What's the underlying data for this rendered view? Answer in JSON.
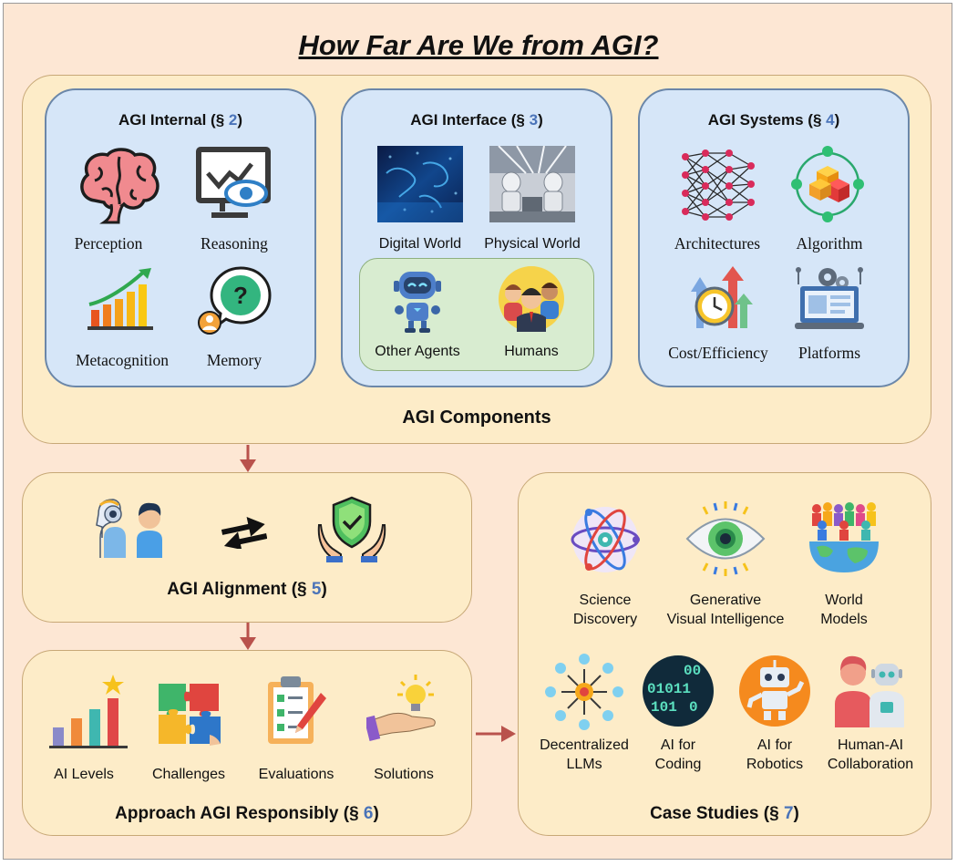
{
  "title": "How Far Are We from AGI?",
  "components": {
    "caption": "AGI Components",
    "internal": {
      "title": "AGI Internal (",
      "section_sym": "§",
      "section_num": "2",
      "close": ")",
      "items": [
        "Perception",
        "Reasoning",
        "Metacognition",
        "Memory"
      ]
    },
    "interface": {
      "title": "AGI Interface (",
      "section_sym": "§",
      "section_num": "3",
      "close": ")",
      "items": [
        "Digital World",
        "Physical World",
        "Other Agents",
        "Humans"
      ]
    },
    "systems": {
      "title": "AGI Systems (",
      "section_sym": "§",
      "section_num": "4",
      "close": ")",
      "items": [
        "Architectures",
        "Algorithm",
        "Cost/Efficiency",
        "Platforms"
      ]
    }
  },
  "alignment": {
    "title": "AGI Alignment (",
    "section_sym": "§",
    "section_num": "5",
    "close": ")"
  },
  "approach": {
    "title": "Approach AGI Responsibly (",
    "section_sym": "§",
    "section_num": "6",
    "close": ")",
    "items": [
      "AI Levels",
      "Challenges",
      "Evaluations",
      "Solutions"
    ]
  },
  "case_studies": {
    "title": "Case Studies (",
    "section_sym": "§",
    "section_num": "7",
    "close": ")",
    "row1": [
      {
        "line1": "Science",
        "line2": "Discovery"
      },
      {
        "line1": "Generative",
        "line2": "Visual Intelligence"
      },
      {
        "line1": "World",
        "line2": "Models"
      }
    ],
    "row2": [
      {
        "line1": "Decentralized",
        "line2": "LLMs"
      },
      {
        "line1": "AI for",
        "line2": "Coding"
      },
      {
        "line1": "AI for",
        "line2": "Robotics"
      },
      {
        "line1": "Human-AI",
        "line2": "Collaboration"
      }
    ]
  },
  "coding_icon_text": [
    "00",
    "01011",
    "101",
    "0"
  ],
  "colors": {
    "background": "#fde7d4",
    "panel": "#fdecc8",
    "blue_panel": "#d6e6f8",
    "green_panel": "#d8ecd0",
    "arrow": "#b9524c",
    "section_number": "#4a73b8"
  }
}
